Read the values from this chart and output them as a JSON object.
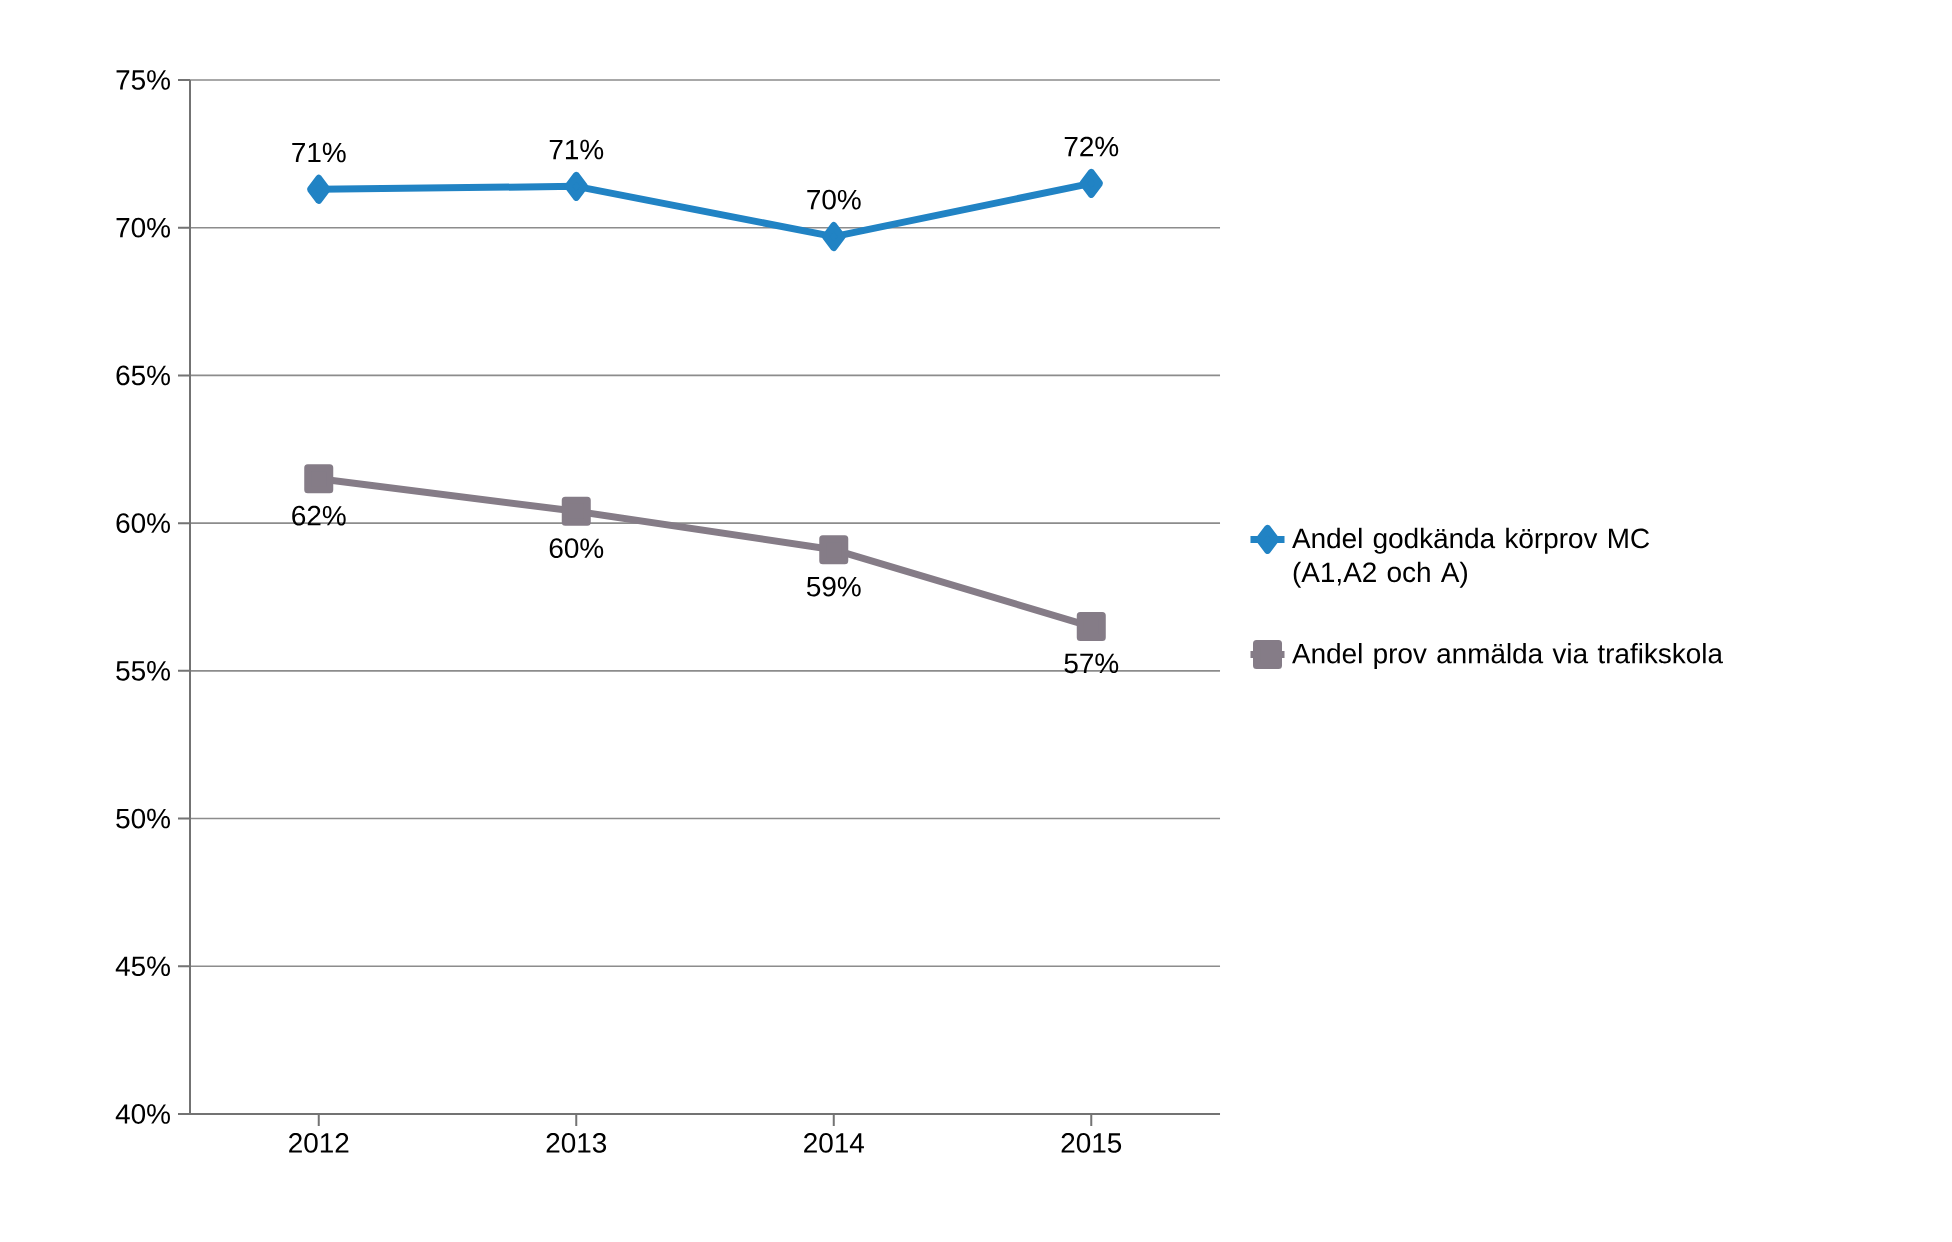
{
  "chart_data": {
    "type": "line",
    "categories": [
      "2012",
      "2013",
      "2014",
      "2015"
    ],
    "series": [
      {
        "name": "Andel godkända körprov MC (A1,A2 och A)",
        "color": "#2183c4",
        "marker": "diamond",
        "values": [
          71.3,
          71.4,
          69.7,
          71.5
        ],
        "value_labels": [
          "71%",
          "71%",
          "70%",
          "72%"
        ]
      },
      {
        "name": "Andel prov anmälda via trafikskola",
        "color": "#857c87",
        "marker": "square",
        "values": [
          61.5,
          60.4,
          59.1,
          56.5
        ],
        "value_labels": [
          "62%",
          "60%",
          "59%",
          "57%"
        ]
      }
    ],
    "ylim": [
      40,
      75
    ],
    "yticks": [
      {
        "value": 40,
        "label": "40%"
      },
      {
        "value": 45,
        "label": "45%"
      },
      {
        "value": 50,
        "label": "50%"
      },
      {
        "value": 55,
        "label": "55%"
      },
      {
        "value": 60,
        "label": "60%"
      },
      {
        "value": 65,
        "label": "65%"
      },
      {
        "value": 70,
        "label": "70%"
      },
      {
        "value": 75,
        "label": "75%"
      }
    ],
    "grid": "y",
    "legend": "right"
  }
}
